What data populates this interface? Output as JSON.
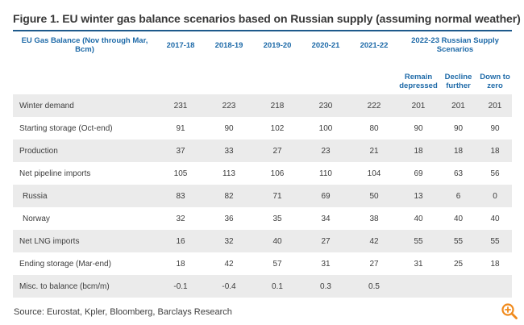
{
  "figure": {
    "title": "Figure 1. EU winter gas balance scenarios based on Russian supply (assuming normal weather)",
    "source": "Source: Eurostat, Kpler, Bloomberg, Barclays Research"
  },
  "table": {
    "label_header": "EU Gas Balance (Nov through Mar, Bcm)",
    "year_headers": [
      "2017-18",
      "2018-19",
      "2019-20",
      "2020-21",
      "2021-22"
    ],
    "scenario_group_header": "2022-23 Russian Supply Scenarios",
    "scenario_headers": [
      "Remain depressed",
      "Decline further",
      "Down to zero"
    ],
    "rows": [
      {
        "label": "Winter demand",
        "values": [
          "231",
          "223",
          "218",
          "230",
          "222",
          "201",
          "201",
          "201"
        ]
      },
      {
        "label": "Starting storage (Oct-end)",
        "values": [
          "91",
          "90",
          "102",
          "100",
          "80",
          "90",
          "90",
          "90"
        ]
      },
      {
        "label": "Production",
        "values": [
          "37",
          "33",
          "27",
          "23",
          "21",
          "18",
          "18",
          "18"
        ]
      },
      {
        "label": "Net pipeline imports",
        "values": [
          "105",
          "113",
          "106",
          "110",
          "104",
          "69",
          "63",
          "56"
        ]
      },
      {
        "label": "Russia",
        "values": [
          "83",
          "82",
          "71",
          "69",
          "50",
          "13",
          "6",
          "0"
        ]
      },
      {
        "label": "Norway",
        "values": [
          "32",
          "36",
          "35",
          "34",
          "38",
          "40",
          "40",
          "40"
        ]
      },
      {
        "label": "Net LNG imports",
        "values": [
          "16",
          "32",
          "40",
          "27",
          "42",
          "55",
          "55",
          "55"
        ]
      },
      {
        "label": "Ending storage (Mar-end)",
        "values": [
          "18",
          "42",
          "57",
          "31",
          "27",
          "31",
          "25",
          "18"
        ]
      },
      {
        "label": "Misc. to balance (bcm/m)",
        "values": [
          "-0.1",
          "-0.4",
          "0.1",
          "0.3",
          "0.5",
          "",
          "",
          ""
        ]
      }
    ]
  },
  "icons": {
    "zoom": "zoom-in-icon"
  },
  "colors": {
    "accent": "#1e6aa8",
    "rule": "#1e5a8c",
    "stripe": "#ebebeb",
    "zoom": "#f08a1c"
  }
}
